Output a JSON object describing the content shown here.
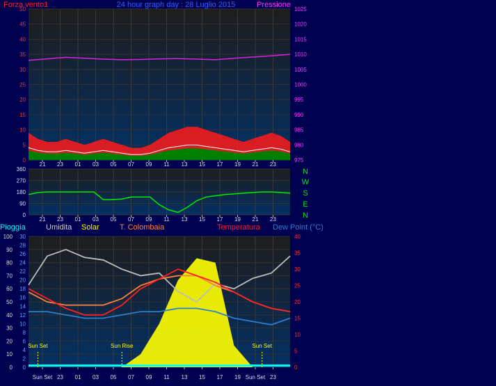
{
  "colors": {
    "background": "#000050",
    "plot_top": "#1c1c1c",
    "plot_bottom": "#002a5c",
    "wind": "#ff1a1a",
    "wind_avg": "#ffffff",
    "wind_gust_fill": "#008000",
    "pressure": "#e020e0",
    "direction": "#00ee00",
    "rain": "#00ffff",
    "humidity": "#bdbdbd",
    "solar": "#ffff00",
    "colombaia": "#ff8040",
    "temperature": "#ff2020",
    "dewpoint": "#2c7fd0",
    "sun_markers": "#ffff00"
  },
  "header": {
    "title": "24 hour graph day : 28 Luglio 2015",
    "left_label": "Forza vento1",
    "right_label": "Pressione"
  },
  "direction_panel": {
    "compass_letters": [
      "N",
      "W",
      "S",
      "E",
      "N"
    ]
  },
  "legend": {
    "rain": "Pioggia",
    "humidity": "Umidita",
    "solar": "Solar",
    "colombaia": "T. Colombaia",
    "temperature": "Temperatura",
    "dewpoint": "Dew Point (°C)"
  },
  "markers": {
    "sunset": "Sun Set",
    "sunrise": "Sun Rise"
  },
  "chart_data": [
    {
      "type": "line",
      "panel": "wind_pressure",
      "x_ticks": [
        "21",
        "23",
        "01",
        "03",
        "05",
        "07",
        "09",
        "11",
        "13",
        "15",
        "17",
        "19",
        "21",
        "23"
      ],
      "left_axis": {
        "label": "Forza vento1",
        "ticks": [
          0,
          5,
          10,
          15,
          20,
          25,
          30,
          35,
          40,
          45,
          50
        ],
        "ylim": [
          0,
          50
        ]
      },
      "right_axis": {
        "label": "Pressione",
        "ticks": [
          975,
          980,
          985,
          990,
          995,
          1000,
          1005,
          1010,
          1015,
          1020,
          1025
        ],
        "ylim": [
          975,
          1025
        ]
      },
      "series": [
        {
          "name": "Pressione",
          "axis": "right",
          "x": [
            0,
            2,
            4,
            6,
            8,
            10,
            12,
            14,
            16,
            18,
            20,
            22,
            24,
            26,
            28
          ],
          "values": [
            1008.0,
            1008.5,
            1009.0,
            1008.7,
            1008.4,
            1008.2,
            1008.3,
            1008.5,
            1008.6,
            1008.4,
            1008.2,
            1008.7,
            1009.1,
            1009.5,
            1010.0
          ]
        },
        {
          "name": "Forza vento1",
          "axis": "left",
          "x": [
            0,
            1,
            2,
            3,
            4,
            5,
            6,
            7,
            8,
            9,
            10,
            11,
            12,
            13,
            14,
            15,
            16,
            17,
            18,
            19,
            20,
            21,
            22,
            23,
            24,
            25,
            26,
            27,
            28
          ],
          "values": [
            9,
            7,
            6,
            6,
            7,
            6,
            5,
            6,
            7,
            6,
            5,
            4,
            4,
            5,
            7,
            9,
            10,
            11,
            11,
            10,
            9,
            8,
            7,
            6,
            7,
            8,
            9,
            8,
            6
          ]
        }
      ]
    },
    {
      "type": "line",
      "panel": "wind_direction",
      "x_ticks": [
        "21",
        "23",
        "01",
        "03",
        "05",
        "07",
        "09",
        "11",
        "13",
        "15",
        "17",
        "19",
        "21",
        "23"
      ],
      "left_axis": {
        "ticks": [
          0,
          90,
          180,
          270,
          360
        ],
        "ylim": [
          0,
          360
        ]
      },
      "series": [
        {
          "name": "Direction",
          "x": [
            0,
            1,
            2,
            3,
            4,
            5,
            6,
            7,
            8,
            9,
            10,
            11,
            12,
            13,
            14,
            15,
            16,
            17,
            18,
            19,
            20,
            21,
            22,
            23,
            24,
            25,
            26,
            27,
            28
          ],
          "values": [
            160,
            175,
            180,
            180,
            180,
            180,
            180,
            180,
            120,
            120,
            125,
            140,
            140,
            140,
            80,
            40,
            20,
            60,
            110,
            140,
            150,
            160,
            165,
            170,
            175,
            180,
            180,
            175,
            170
          ]
        }
      ]
    },
    {
      "type": "area",
      "panel": "temperature",
      "x_ticks": [
        "Sun Set",
        "23",
        "01",
        "03",
        "05",
        "07",
        "09",
        "11",
        "13",
        "15",
        "17",
        "19",
        "Sun Set",
        "23"
      ],
      "left_axis_rain": {
        "label": "Pioggia",
        "ticks": [
          0,
          10,
          20,
          30,
          40,
          50,
          60,
          70,
          80,
          90,
          100
        ],
        "ylim": [
          0,
          100
        ]
      },
      "left_axis_humidity": {
        "ticks": [
          0,
          2,
          4,
          6,
          8,
          10,
          12,
          14,
          16,
          18,
          20,
          22,
          24,
          26,
          28,
          30
        ],
        "ylim": [
          0,
          30
        ]
      },
      "right_axis": {
        "label": "Temperatura",
        "ticks": [
          0,
          5,
          10,
          15,
          20,
          25,
          30,
          35,
          40
        ],
        "ylim": [
          0,
          40
        ]
      },
      "series": [
        {
          "name": "Umidita",
          "x": [
            0,
            2,
            4,
            6,
            8,
            10,
            12,
            14,
            16,
            18,
            20,
            22,
            24,
            26,
            28
          ],
          "values": [
            63,
            85,
            90,
            84,
            82,
            75,
            70,
            72,
            58,
            50,
            64,
            60,
            68,
            72,
            85
          ]
        },
        {
          "name": "Temperatura",
          "x": [
            0,
            2,
            4,
            6,
            8,
            10,
            12,
            14,
            16,
            18,
            20,
            22,
            24,
            26,
            28
          ],
          "values": [
            24,
            21,
            18,
            16,
            16,
            19,
            24,
            27,
            30,
            28,
            26,
            23,
            20,
            18,
            17
          ]
        },
        {
          "name": "T. Colombaia",
          "x": [
            0,
            2,
            4,
            6,
            8,
            10,
            12,
            14,
            16,
            18,
            20,
            22,
            24,
            26,
            28
          ],
          "values": [
            23,
            20,
            19,
            19,
            19,
            21,
            25,
            27,
            28,
            28,
            25,
            23,
            20,
            18,
            17
          ]
        },
        {
          "name": "Dew Point (°C)",
          "x": [
            0,
            2,
            4,
            6,
            8,
            10,
            12,
            14,
            16,
            18,
            20,
            22,
            24,
            26,
            28
          ],
          "values": [
            17,
            17,
            16,
            15,
            15,
            16,
            17,
            17,
            18,
            18,
            17,
            15,
            14,
            13,
            15
          ]
        },
        {
          "name": "Solar",
          "x": [
            0,
            2,
            4,
            6,
            8,
            10,
            12,
            14,
            16,
            18,
            20,
            22,
            24,
            26,
            28
          ],
          "values": [
            0,
            0,
            0,
            0,
            0,
            0,
            3,
            10,
            20,
            25,
            24,
            5,
            0,
            0,
            0
          ]
        },
        {
          "name": "Pioggia",
          "x": [
            0,
            28
          ],
          "values": [
            1,
            1
          ]
        }
      ],
      "annotations": [
        {
          "text": "Sun Set",
          "x": 1.0
        },
        {
          "text": "Sun Rise",
          "x": 10.0
        },
        {
          "text": "Sun Set",
          "x": 25.0
        }
      ]
    }
  ]
}
